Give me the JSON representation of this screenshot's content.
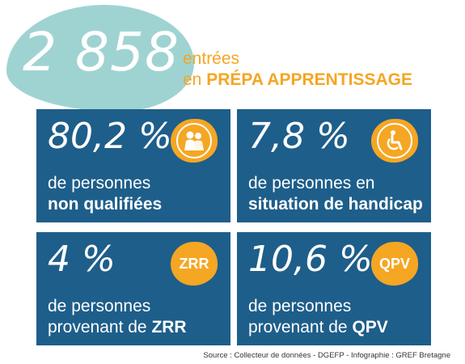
{
  "header": {
    "number": "2 858",
    "line1": "entrées",
    "line2_prefix": "en",
    "line2_bold": "PRÉPA APPRENTISSAGE"
  },
  "cards": [
    {
      "value": "80,2 %",
      "line1": "de personnes",
      "line2_prefix": "",
      "line2_bold": "non qualifiées",
      "icon": "people-icon"
    },
    {
      "value": "7,8 %",
      "line1": "de personnes en",
      "line2_prefix": "",
      "line2_bold": "situation de handicap",
      "icon": "wheelchair-icon"
    },
    {
      "value": "4 %",
      "line1": "de personnes",
      "line2_prefix": "provenant de ",
      "line2_bold": "ZRR",
      "icon": "ZRR"
    },
    {
      "value": "10,6 %",
      "line1": "de personnes",
      "line2_prefix": "provenant de ",
      "line2_bold": "QPV",
      "icon": "QPV"
    }
  ],
  "source": "Source : Collecteur de données - DGEFP - Infographie : GREF Bretagne",
  "colors": {
    "teal": "#9fd3d2",
    "orange": "#f5a623",
    "blue": "#1e5e8a"
  }
}
